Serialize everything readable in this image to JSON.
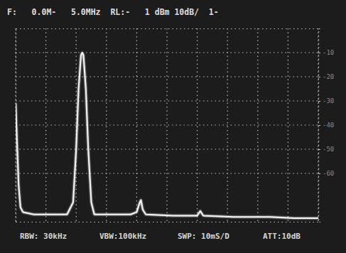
{
  "chart_data": {
    "type": "line",
    "title": "F:   0.0M-   5.0MHz  RL:-   1 dBm 10dB/  1-",
    "annotations": [
      "RBW: 30kHz",
      "VBW:100kHz",
      "SWP: 10mS/D",
      "ATT:10dB"
    ],
    "x": [
      0,
      0.02,
      0.05,
      0.08,
      0.12,
      0.3,
      0.6,
      0.85,
      0.95,
      1.0,
      1.04,
      1.08,
      1.1,
      1.12,
      1.16,
      1.2,
      1.25,
      1.3,
      1.6,
      1.9,
      2.0,
      2.05,
      2.07,
      2.1,
      2.15,
      2.6,
      3.0,
      3.05,
      3.1,
      3.6,
      4.2,
      4.6,
      5.0
    ],
    "values": [
      -31,
      -45,
      -65,
      -74,
      -76,
      -77,
      -77,
      -77,
      -72,
      -50,
      -25,
      -11,
      -10,
      -11,
      -25,
      -50,
      -72,
      -77,
      -77,
      -77,
      -76,
      -72,
      -71,
      -75,
      -77,
      -77.5,
      -77.5,
      -75.5,
      -77.5,
      -78,
      -78,
      -78.5,
      -78.5
    ],
    "color": "#f2f2f2",
    "xlim": [
      0,
      5
    ],
    "xticks": [
      0,
      0.5,
      1,
      1.5,
      2,
      2.5,
      3,
      3.5,
      4,
      4.5,
      5
    ],
    "ylim": [
      -80,
      0
    ],
    "yticks": [
      -10,
      -20,
      -30,
      -40,
      -50,
      -60
    ],
    "grid": true,
    "tick_labels": "y"
  }
}
